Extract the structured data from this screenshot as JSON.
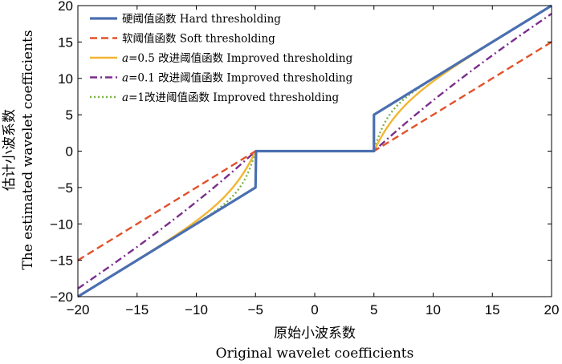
{
  "chart_data": {
    "type": "line",
    "xlabel_cn": "原始小波系数",
    "xlabel_en": "Original wavelet coefficients",
    "ylabel_cn": "估计小波系数",
    "ylabel_en": "The estimated wavelet coefficients",
    "xlim": [
      -20,
      20
    ],
    "ylim": [
      -20,
      20
    ],
    "xticks": [
      -20,
      -15,
      -10,
      -5,
      0,
      5,
      10,
      15,
      20
    ],
    "yticks": [
      -20,
      -15,
      -10,
      -5,
      0,
      5,
      10,
      15,
      20
    ],
    "threshold": 5,
    "grid": false,
    "legend_position": "top-left",
    "series": [
      {
        "name": "硬阈值函数 Hard thresholding",
        "method": "hard",
        "color": "#4a6fb0",
        "style": "solid"
      },
      {
        "name": "软阈值函数 Soft thresholding",
        "method": "soft",
        "color": "#e2522b",
        "style": "dashed"
      },
      {
        "name": "a=0.5 改进阈值函数 Improved thresholding",
        "method": "improved",
        "a": 0.5,
        "color": "#f2b632",
        "style": "solid"
      },
      {
        "name": "a=0.1 改进阈值函数 Improved thresholding",
        "method": "improved",
        "a": 0.1,
        "color": "#7b2e8c",
        "style": "dashdot"
      },
      {
        "name": "a=1改进阈值函数 Improved thresholding",
        "method": "improved",
        "a": 1,
        "color": "#7cb342",
        "style": "dotted"
      }
    ],
    "legend": [
      {
        "prefix": "",
        "text": "硬阈值函数 Hard thresholding"
      },
      {
        "prefix": "",
        "text": "软阈值函数 Soft thresholding"
      },
      {
        "prefix": "a",
        "text": "=0.5 改进阈值函数 Improved thresholding"
      },
      {
        "prefix": "a",
        "text": "=0.1 改进阈值函数 Improved thresholding"
      },
      {
        "prefix": "a",
        "text": "=1改进阈值函数 Improved thresholding"
      }
    ]
  }
}
